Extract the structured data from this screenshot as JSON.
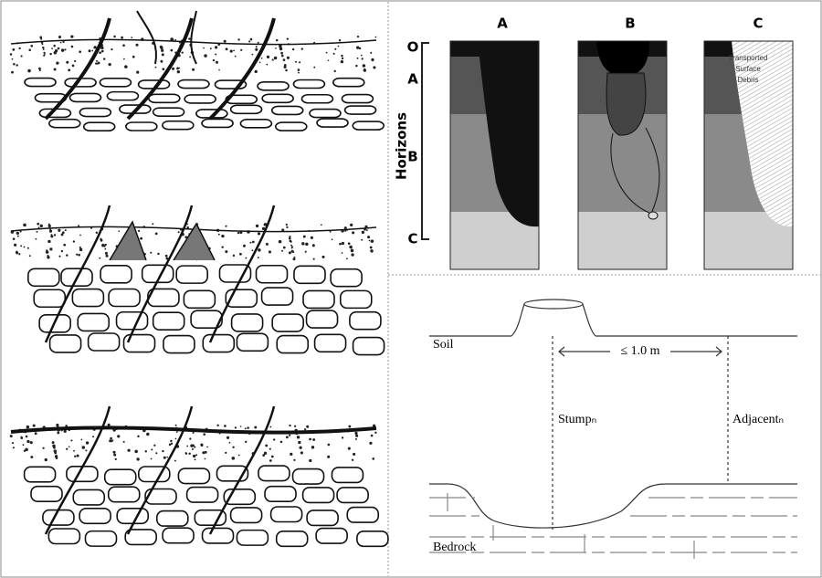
{
  "profile": {
    "columns": [
      "A",
      "B",
      "C"
    ],
    "horizons": [
      "O",
      "A",
      "B",
      "C"
    ],
    "axis_label": "Horizons",
    "debris_label": [
      "Transported",
      "Surface",
      "Debris"
    ]
  },
  "section": {
    "soil": "Soil",
    "distance": "≤ 1.0 m",
    "stump": "Stumpₙ",
    "adjacent": "Adjacentₙ",
    "bedrock": "Bedrock"
  }
}
